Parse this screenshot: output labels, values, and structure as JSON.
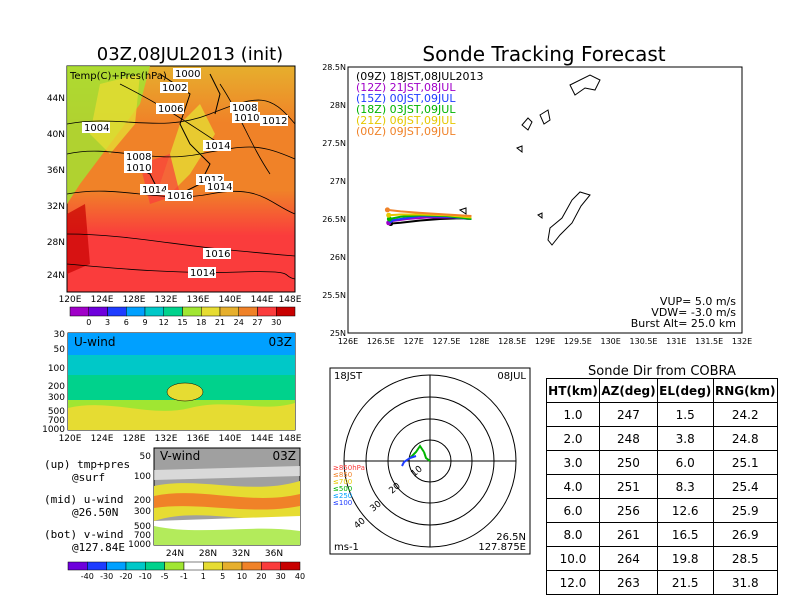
{
  "map_panel": {
    "title": "03Z,08JUL2013 (init)",
    "legend_label": "Temp(C)+Pres(hPa)",
    "lat_labels": [
      "44N",
      "40N",
      "36N",
      "32N",
      "28N",
      "24N"
    ],
    "lon_labels": [
      "120E",
      "124E",
      "128E",
      "132E",
      "136E",
      "140E",
      "144E",
      "148E"
    ],
    "isobars": [
      "1000",
      "1002",
      "1006",
      "1004",
      "1008",
      "1010",
      "1012",
      "1014",
      "1014",
      "1016",
      "1012",
      "1014",
      "1014",
      "1008",
      "1010",
      "1016",
      "1014"
    ],
    "colorbar_labels": [
      "0",
      "3",
      "6",
      "9",
      "12",
      "15",
      "18",
      "21",
      "24",
      "27",
      "30"
    ],
    "colorbar_colors": [
      "#a000c8",
      "#6e00dc",
      "#1e3cff",
      "#00a0ff",
      "#00c8c8",
      "#00d28c",
      "#a0e632",
      "#e6dc32",
      "#e6af2d",
      "#f08228",
      "#fa3c3c",
      "#c80000"
    ]
  },
  "u_panel": {
    "label": "U-wind",
    "time": "03Z",
    "y_labels": [
      "30",
      "50",
      "100",
      "200",
      "300",
      "500",
      "700",
      "1000"
    ],
    "x_labels": [
      "120E",
      "124E",
      "128E",
      "132E",
      "136E",
      "140E",
      "144E",
      "148E"
    ]
  },
  "v_panel": {
    "label": "V-wind",
    "time": "03Z",
    "y_labels": [
      "50",
      "100",
      "200",
      "300",
      "500",
      "700",
      "1000"
    ],
    "x_labels": [
      "24N",
      "28N",
      "32N",
      "36N"
    ],
    "colorbar_labels": [
      "-40",
      "-30",
      "-20",
      "-10",
      "-5",
      "-1",
      "1",
      "5",
      "10",
      "20",
      "30",
      "40"
    ],
    "colorbar_colors": [
      "#6e00dc",
      "#1e3cff",
      "#00a0ff",
      "#00c8c8",
      "#00d28c",
      "#a0e632",
      "#ffffff",
      "#e6dc32",
      "#e6af2d",
      "#f08228",
      "#fa3c3c",
      "#c80000"
    ]
  },
  "notes": {
    "up_line1": "(up) tmp+pres",
    "up_line2": "@surf",
    "mid_line1": "(mid) u-wind",
    "mid_line2": "@26.50N",
    "bot_line1": "(bot) v-wind",
    "bot_line2": "@127.84E"
  },
  "tracking": {
    "title": "Sonde Tracking Forecast",
    "legend": [
      {
        "text": "(09Z)  18JST,08JUL2013",
        "color": "#000000"
      },
      {
        "text": "(12Z)  21JST,08JUL",
        "color": "#a000c8"
      },
      {
        "text": "(15Z)  00JST,09JUL",
        "color": "#1e3cff"
      },
      {
        "text": "(18Z)  03JST,09JUL",
        "color": "#00b400"
      },
      {
        "text": "(21Z)  06JST,09JUL",
        "color": "#e6c800"
      },
      {
        "text": "(00Z)  09JST,09JUL",
        "color": "#f08228"
      }
    ],
    "lat_labels": [
      "28.5N",
      "28N",
      "27.5N",
      "27N",
      "26.5N",
      "26N",
      "25.5N",
      "25N"
    ],
    "lon_labels": [
      "126E",
      "126.5E",
      "127E",
      "127.5E",
      "128E",
      "128.5E",
      "129E",
      "129.5E",
      "130E",
      "130.5E",
      "131E",
      "131.5E",
      "132E"
    ],
    "vup": "VUP= 5.0 m/s",
    "vdw": "VDW= -3.0 m/s",
    "burst": "Burst Alt= 25.0 km"
  },
  "polar": {
    "time_label": "18JST",
    "date_label": "08JUL",
    "lat": "26.5N",
    "lon": "127.875E",
    "unit": "ms-1",
    "ring_labels": [
      "10",
      "20",
      "30",
      "40"
    ],
    "pressure_legend": [
      {
        "text": "≥850hPa",
        "color": "#fa3c3c"
      },
      {
        "text": "≤850",
        "color": "#f08228"
      },
      {
        "text": "≤700",
        "color": "#e6c800"
      },
      {
        "text": "≤500",
        "color": "#00b400"
      },
      {
        "text": "≤250",
        "color": "#00a0ff"
      },
      {
        "text": "≤100",
        "color": "#1e3cff"
      }
    ]
  },
  "sonde_table": {
    "title": "Sonde Dir from COBRA",
    "headers": [
      "HT(km)",
      "AZ(deg)",
      "EL(deg)",
      "RNG(km)"
    ],
    "rows": [
      [
        "1.0",
        "247",
        "1.5",
        "24.2"
      ],
      [
        "2.0",
        "248",
        "3.8",
        "24.8"
      ],
      [
        "3.0",
        "250",
        "6.0",
        "25.1"
      ],
      [
        "4.0",
        "251",
        "8.3",
        "25.4"
      ],
      [
        "6.0",
        "256",
        "12.6",
        "25.9"
      ],
      [
        "8.0",
        "261",
        "16.5",
        "26.9"
      ],
      [
        "10.0",
        "264",
        "19.8",
        "28.5"
      ],
      [
        "12.0",
        "263",
        "21.5",
        "31.8"
      ]
    ]
  },
  "chart_data": [
    {
      "type": "heatmap",
      "title": "03Z,08JUL2013 (init)",
      "xlabel": "",
      "ylabel": "",
      "x_ticks": [
        "120E",
        "124E",
        "128E",
        "132E",
        "136E",
        "140E",
        "144E",
        "148E"
      ],
      "y_ticks": [
        "44N",
        "40N",
        "36N",
        "32N",
        "28N",
        "24N"
      ],
      "colorbar": [
        0,
        3,
        6,
        9,
        12,
        15,
        18,
        21,
        24,
        27,
        30
      ]
    },
    {
      "type": "heatmap",
      "title": "U-wind",
      "x_ticks": [
        "120E",
        "124E",
        "128E",
        "132E",
        "136E",
        "140E",
        "144E",
        "148E"
      ],
      "y_ticks": [
        30,
        50,
        100,
        200,
        300,
        500,
        700,
        1000
      ]
    },
    {
      "type": "heatmap",
      "title": "V-wind",
      "x_ticks": [
        "24N",
        "28N",
        "32N",
        "36N"
      ],
      "y_ticks": [
        50,
        100,
        200,
        300,
        500,
        700,
        1000
      ],
      "colorbar": [
        -40,
        -30,
        -20,
        -10,
        -5,
        -1,
        1,
        5,
        10,
        20,
        30,
        40
      ]
    },
    {
      "type": "line",
      "title": "Sonde Tracking Forecast",
      "xlim": [
        126,
        132
      ],
      "ylim": [
        25,
        28.5
      ],
      "series": [
        {
          "name": "(09Z)  18JST,08JUL2013",
          "x": [
            127.88,
            127.7,
            127.4,
            127.1,
            126.8,
            126.65
          ],
          "y": [
            26.5,
            26.51,
            26.5,
            26.48,
            26.45,
            26.44
          ]
        },
        {
          "name": "(12Z)  21JST,08JUL",
          "x": [
            127.88,
            127.6,
            127.2,
            126.9,
            126.65,
            126.62
          ],
          "y": [
            26.5,
            26.52,
            26.52,
            26.5,
            26.47,
            26.45
          ]
        },
        {
          "name": "(15Z)  00JST,09JUL",
          "x": [
            127.88,
            127.5,
            127.1,
            126.8,
            126.65
          ],
          "y": [
            26.5,
            26.53,
            26.54,
            26.5,
            26.48
          ]
        },
        {
          "name": "(18Z)  03JST,09JUL",
          "x": [
            127.88,
            127.5,
            127.1,
            126.8,
            126.63
          ],
          "y": [
            26.5,
            26.54,
            26.55,
            26.53,
            26.5
          ]
        },
        {
          "name": "(21Z)  06JST,09JUL",
          "x": [
            127.88,
            127.5,
            127.1,
            126.8,
            126.62
          ],
          "y": [
            26.52,
            26.55,
            26.56,
            26.56,
            26.55
          ]
        },
        {
          "name": "(00Z)  09JST,09JUL",
          "x": [
            127.88,
            127.5,
            127.1,
            126.8,
            126.6
          ],
          "y": [
            26.54,
            26.56,
            26.58,
            26.6,
            26.62
          ]
        }
      ]
    },
    {
      "type": "table",
      "title": "Sonde Dir from COBRA",
      "columns": [
        "HT(km)",
        "AZ(deg)",
        "EL(deg)",
        "RNG(km)"
      ],
      "rows": [
        [
          "1.0",
          "247",
          "1.5",
          "24.2"
        ],
        [
          "2.0",
          "248",
          "3.8",
          "24.8"
        ],
        [
          "3.0",
          "250",
          "6.0",
          "25.1"
        ],
        [
          "4.0",
          "251",
          "8.3",
          "25.4"
        ],
        [
          "6.0",
          "256",
          "12.6",
          "25.9"
        ],
        [
          "8.0",
          "261",
          "16.5",
          "26.9"
        ],
        [
          "10.0",
          "264",
          "19.8",
          "28.5"
        ],
        [
          "12.0",
          "263",
          "21.5",
          "31.8"
        ]
      ]
    }
  ]
}
